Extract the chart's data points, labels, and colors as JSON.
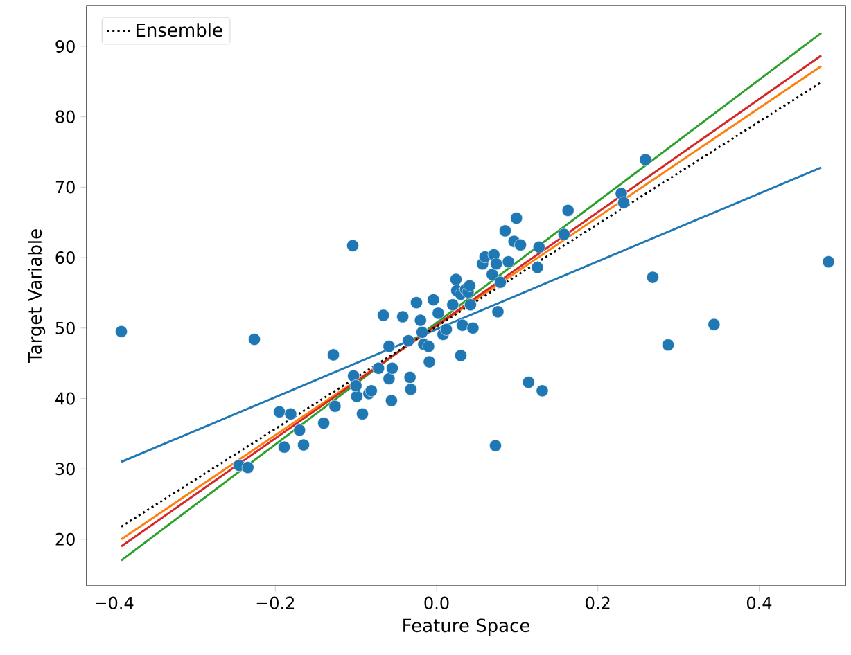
{
  "chart_data": {
    "type": "scatter",
    "xlabel": "Feature Space",
    "ylabel": "Target Variable",
    "xlim": [
      -0.434,
      0.507
    ],
    "ylim": [
      13.4,
      95.8
    ],
    "xticks": [
      {
        "value": -0.4,
        "label": "−0.4"
      },
      {
        "value": -0.2,
        "label": "−0.2"
      },
      {
        "value": 0.0,
        "label": "0.0"
      },
      {
        "value": 0.2,
        "label": "0.2"
      },
      {
        "value": 0.4,
        "label": "0.4"
      }
    ],
    "yticks": [
      20,
      30,
      40,
      50,
      60,
      70,
      80,
      90
    ],
    "legend": "top left",
    "grid": false,
    "series": [
      {
        "color": "#1f77b4",
        "marker": "circle",
        "x": [
          -0.391,
          -0.226,
          -0.104,
          -0.195,
          -0.189,
          -0.181,
          -0.17,
          -0.165,
          -0.14,
          -0.128,
          -0.126,
          -0.103,
          -0.099,
          -0.1,
          -0.092,
          -0.084,
          -0.081,
          -0.072,
          -0.066,
          -0.059,
          -0.056,
          -0.055,
          -0.059,
          -0.042,
          -0.035,
          -0.033,
          -0.032,
          -0.025,
          -0.02,
          -0.018,
          -0.016,
          -0.01,
          -0.009,
          -0.004,
          0.002,
          0.008,
          0.012,
          0.02,
          0.024,
          0.025,
          0.03,
          0.032,
          0.036,
          0.039,
          0.041,
          0.042,
          0.045,
          0.03,
          0.057,
          0.06,
          0.069,
          0.071,
          0.074,
          0.076,
          0.079,
          0.085,
          0.089,
          0.096,
          0.099,
          0.104,
          0.114,
          0.127,
          0.125,
          0.131,
          0.158,
          0.163,
          0.073,
          0.229,
          0.232,
          0.259,
          0.268,
          0.287,
          0.344,
          0.486,
          -0.245,
          -0.234
        ],
        "values": [
          49.5,
          48.4,
          61.7,
          38.1,
          33.1,
          37.8,
          35.5,
          33.4,
          36.5,
          46.2,
          38.9,
          43.2,
          40.3,
          41.8,
          37.8,
          40.7,
          41.1,
          44.3,
          51.8,
          42.8,
          39.7,
          44.3,
          47.4,
          51.6,
          48.2,
          43.0,
          41.3,
          53.6,
          51.1,
          49.4,
          47.7,
          47.4,
          45.2,
          54.0,
          52.1,
          49.1,
          49.8,
          53.3,
          56.9,
          55.3,
          54.8,
          50.4,
          55.5,
          55.1,
          56.0,
          53.3,
          50.0,
          46.1,
          59.1,
          60.1,
          57.6,
          60.4,
          59.1,
          52.3,
          56.5,
          63.8,
          59.4,
          62.3,
          65.6,
          61.8,
          42.3,
          61.5,
          58.6,
          41.1,
          63.3,
          66.7,
          33.3,
          69.1,
          67.8,
          73.9,
          57.2,
          47.6,
          50.5,
          59.4,
          30.5,
          30.2
        ]
      },
      {
        "type": "line",
        "color": "#1f77b4",
        "x": [
          -0.391,
          0.477
        ],
        "values": [
          31.0,
          72.8
        ]
      },
      {
        "type": "line",
        "color": "#ff7f0e",
        "x": [
          -0.391,
          0.477
        ],
        "values": [
          20.0,
          87.2
        ]
      },
      {
        "type": "line",
        "color": "#2ca02c",
        "x": [
          -0.391,
          0.477
        ],
        "values": [
          17.0,
          91.9
        ]
      },
      {
        "type": "line",
        "color": "#d62728",
        "x": [
          -0.391,
          0.477
        ],
        "values": [
          19.0,
          88.7
        ]
      },
      {
        "type": "line",
        "name": "Ensemble",
        "color": "#000000",
        "line_style": "dotted",
        "x": [
          -0.391,
          0.477
        ],
        "values": [
          21.8,
          84.9
        ]
      }
    ]
  }
}
